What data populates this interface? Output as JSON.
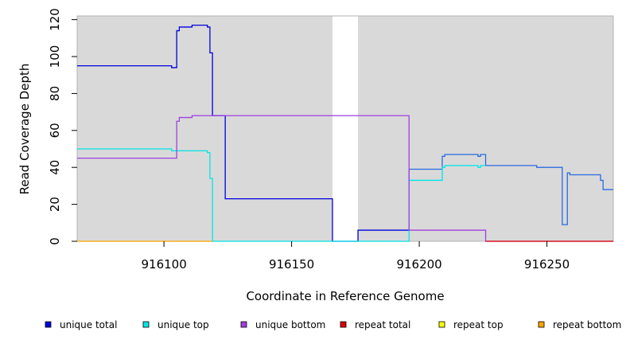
{
  "chart_data": {
    "type": "line",
    "step": true,
    "xlabel": "Coordinate in Reference Genome",
    "ylabel": "Read Coverage Depth",
    "xlim": [
      916066,
      916276
    ],
    "ylim": [
      0,
      122
    ],
    "x_ticks": [
      916100,
      916150,
      916200,
      916250
    ],
    "y_ticks": [
      0,
      20,
      40,
      60,
      80,
      100,
      120
    ],
    "shaded_regions": [
      [
        916066,
        916166
      ],
      [
        916176,
        916276
      ]
    ],
    "background_color": "#d9d9d9",
    "legend_position": "bottom",
    "series": [
      {
        "name": "unique total",
        "color": "#0000dd",
        "points": [
          [
            916066,
            95
          ],
          [
            916103,
            95
          ],
          [
            916103,
            94
          ],
          [
            916105,
            94
          ],
          [
            916105,
            114
          ],
          [
            916106,
            114
          ],
          [
            916106,
            116
          ],
          [
            916111,
            116
          ],
          [
            916111,
            117
          ],
          [
            916117,
            117
          ],
          [
            916117,
            116
          ],
          [
            916118,
            116
          ],
          [
            916118,
            102
          ],
          [
            916119,
            102
          ],
          [
            916119,
            68
          ],
          [
            916124,
            68
          ],
          [
            916124,
            23
          ],
          [
            916166,
            23
          ],
          [
            916166,
            0
          ],
          [
            916176,
            0
          ],
          [
            916176,
            6
          ],
          [
            916196,
            6
          ]
        ]
      },
      {
        "name": "unique total",
        "color": "#2a6ae0",
        "points": [
          [
            916196,
            6
          ],
          [
            916196,
            39
          ],
          [
            916209,
            39
          ],
          [
            916209,
            46
          ],
          [
            916210,
            46
          ],
          [
            916210,
            47
          ],
          [
            916223,
            47
          ],
          [
            916223,
            46
          ],
          [
            916224,
            46
          ],
          [
            916224,
            47
          ],
          [
            916226,
            47
          ],
          [
            916226,
            41
          ],
          [
            916246,
            41
          ],
          [
            916246,
            40
          ],
          [
            916256,
            40
          ],
          [
            916256,
            9
          ],
          [
            916258,
            9
          ],
          [
            916258,
            37
          ],
          [
            916259,
            37
          ],
          [
            916259,
            36
          ],
          [
            916271,
            36
          ],
          [
            916271,
            33
          ],
          [
            916272,
            33
          ],
          [
            916272,
            28
          ],
          [
            916276,
            28
          ]
        ]
      },
      {
        "name": "unique top",
        "color": "#00e5e5",
        "points": [
          [
            916066,
            50
          ],
          [
            916103,
            50
          ],
          [
            916103,
            49
          ],
          [
            916117,
            49
          ],
          [
            916117,
            48
          ],
          [
            916118,
            48
          ],
          [
            916118,
            34
          ],
          [
            916119,
            34
          ],
          [
            916119,
            0
          ],
          [
            916196,
            0
          ],
          [
            916196,
            33
          ],
          [
            916209,
            33
          ],
          [
            916209,
            40
          ],
          [
            916210,
            40
          ],
          [
            916210,
            41
          ],
          [
            916223,
            41
          ],
          [
            916223,
            40
          ],
          [
            916224,
            40
          ],
          [
            916224,
            41
          ],
          [
            916226,
            41
          ]
        ]
      },
      {
        "name": "unique bottom",
        "color": "#a040e0",
        "points": [
          [
            916066,
            45
          ],
          [
            916105,
            45
          ],
          [
            916105,
            65
          ],
          [
            916106,
            65
          ],
          [
            916106,
            67
          ],
          [
            916111,
            67
          ],
          [
            916111,
            68
          ],
          [
            916119,
            68
          ],
          [
            916196,
            68
          ],
          [
            916196,
            6
          ],
          [
            916226,
            6
          ],
          [
            916226,
            0
          ],
          [
            916276,
            0
          ]
        ]
      },
      {
        "name": "repeat total",
        "color": "#e00000",
        "points": [
          [
            916226,
            0
          ],
          [
            916276,
            0
          ]
        ]
      },
      {
        "name": "repeat bottom",
        "color": "#ffa500",
        "points": [
          [
            916066,
            0
          ],
          [
            916119,
            0
          ]
        ]
      }
    ],
    "legend": [
      {
        "label": "unique total",
        "color": "#0000dd"
      },
      {
        "label": "unique top",
        "color": "#00e5e5"
      },
      {
        "label": "unique bottom",
        "color": "#a040e0"
      },
      {
        "label": "repeat total",
        "color": "#e00000"
      },
      {
        "label": "repeat top",
        "color": "#ffff00"
      },
      {
        "label": "repeat bottom",
        "color": "#ffa500"
      }
    ]
  }
}
